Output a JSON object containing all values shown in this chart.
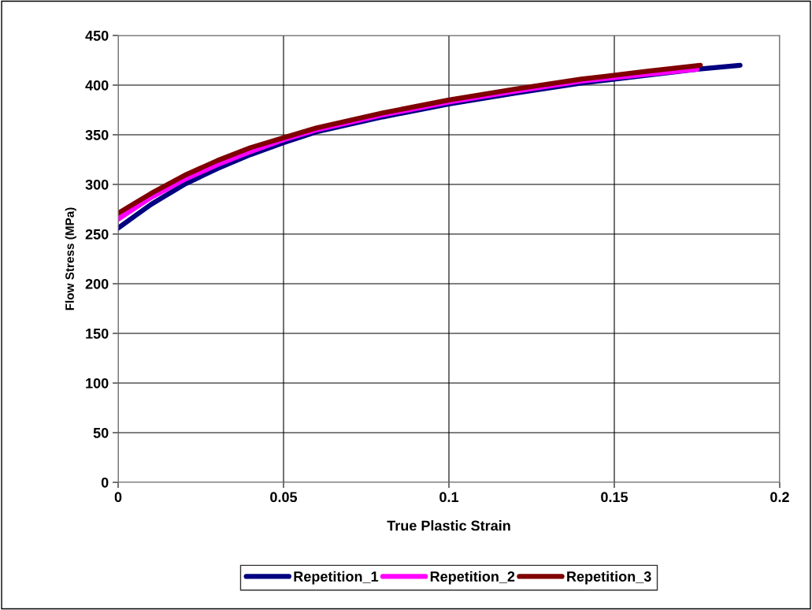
{
  "chart_data": {
    "type": "line",
    "xlabel": "True Plastic Strain",
    "ylabel": "Flow Stress (MPa)",
    "xlim": [
      0,
      0.2
    ],
    "xticks": [
      0,
      0.05,
      0.1,
      0.15,
      0.2
    ],
    "ylim": [
      0,
      450
    ],
    "yticks": [
      0,
      50,
      100,
      150,
      200,
      250,
      300,
      350,
      400,
      450
    ],
    "grid": true,
    "legend": "bottom",
    "marker": "none",
    "line_style": "solid",
    "series": [
      {
        "name": "Repetition_1",
        "color": "#000080",
        "x": [
          0,
          0.005,
          0.01,
          0.02,
          0.03,
          0.04,
          0.05,
          0.06,
          0.08,
          0.1,
          0.12,
          0.14,
          0.16,
          0.175,
          0.188
        ],
        "values": [
          256,
          268,
          280,
          300,
          316,
          330,
          342,
          353,
          368,
          381,
          392,
          402,
          410,
          416,
          420
        ]
      },
      {
        "name": "Repetition_2",
        "color": "#ff00ff",
        "x": [
          0,
          0.005,
          0.01,
          0.02,
          0.03,
          0.04,
          0.05,
          0.06,
          0.08,
          0.1,
          0.12,
          0.14,
          0.16,
          0.175
        ],
        "values": [
          265,
          276,
          287,
          305,
          320,
          333,
          345,
          355,
          370,
          383,
          394,
          404,
          411,
          416
        ]
      },
      {
        "name": "Repetition_3",
        "color": "#800000",
        "x": [
          0,
          0.005,
          0.01,
          0.02,
          0.03,
          0.04,
          0.05,
          0.06,
          0.08,
          0.1,
          0.12,
          0.14,
          0.16,
          0.176
        ],
        "values": [
          271,
          281,
          291,
          309,
          324,
          337,
          347,
          357,
          372,
          385,
          396,
          406,
          414,
          420
        ]
      }
    ]
  }
}
